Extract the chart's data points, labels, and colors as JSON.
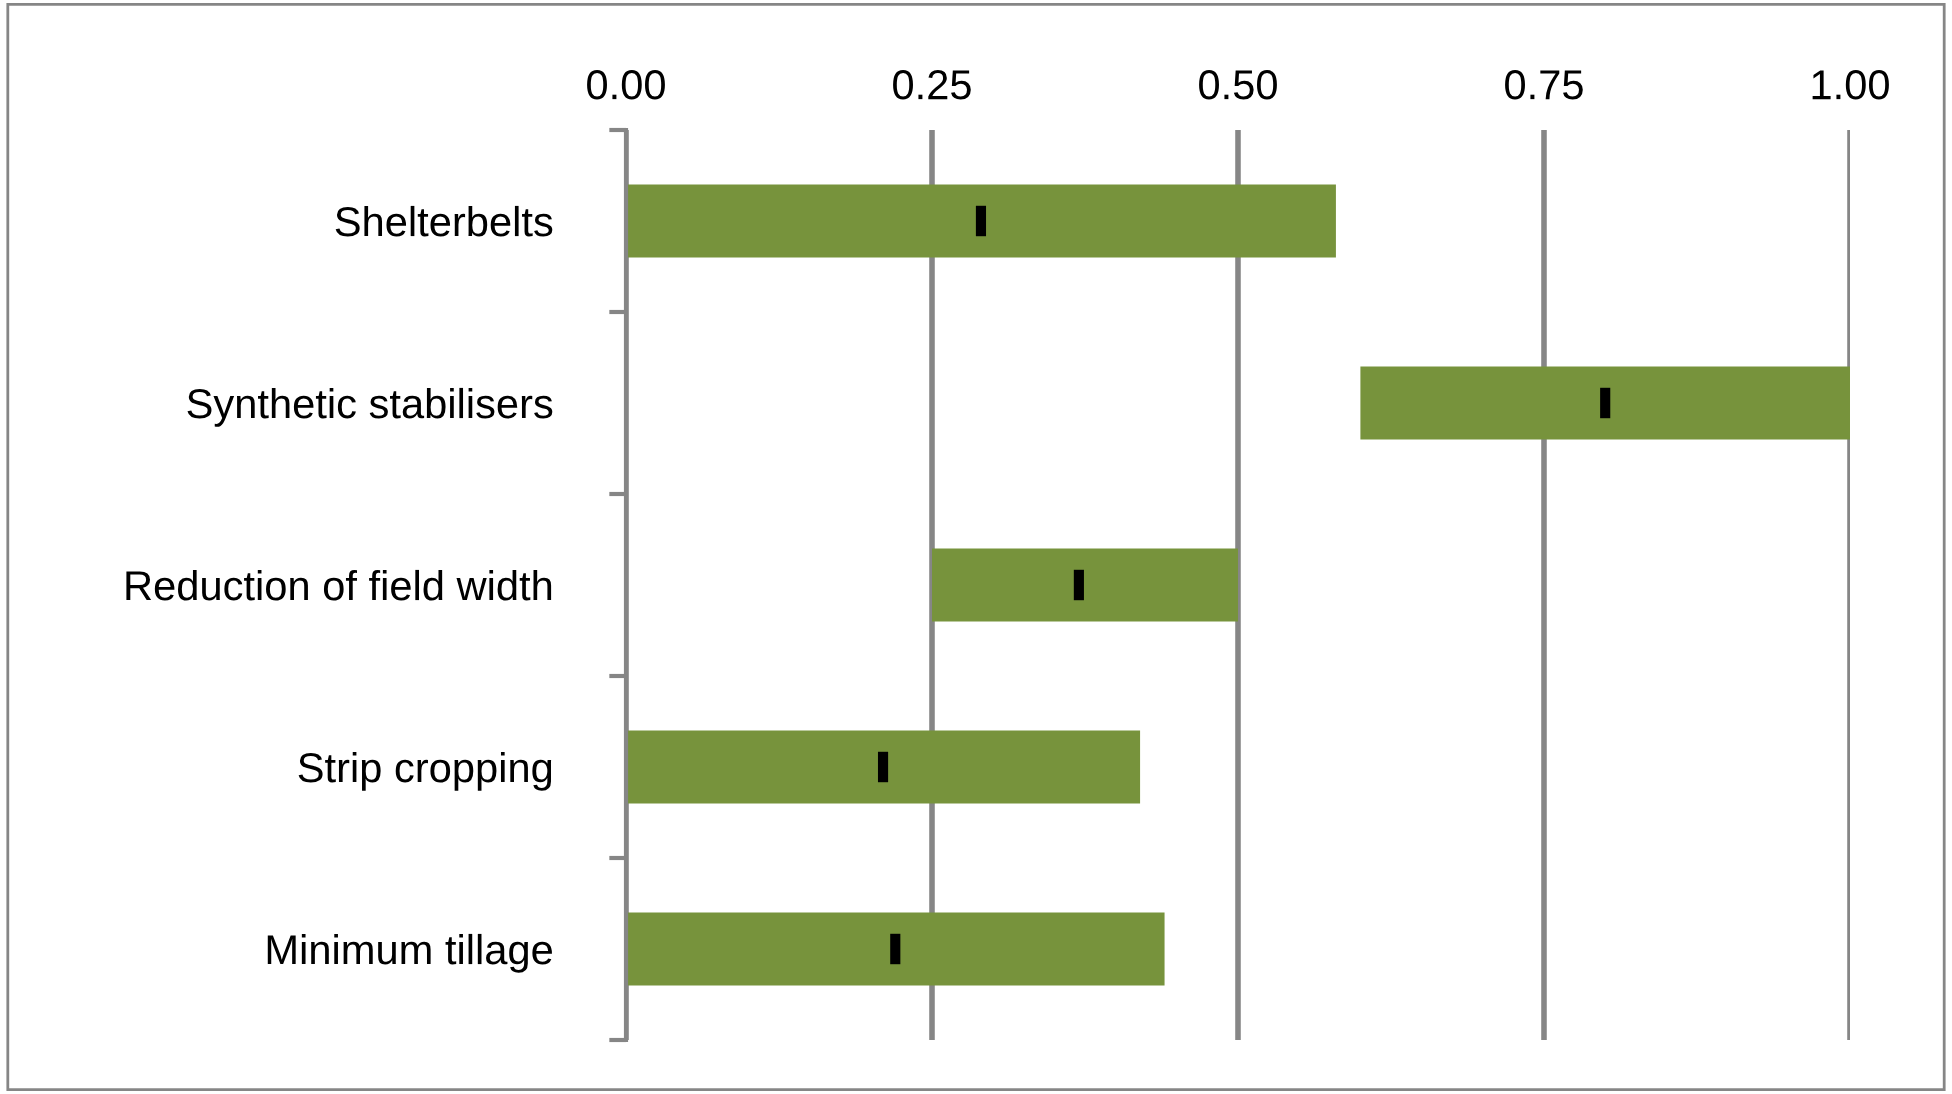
{
  "chart_data": {
    "type": "bar",
    "orientation": "horizontal",
    "categories": [
      "Shelterbelts",
      "Synthetic stabilisers",
      "Reduction of field width",
      "Strip cropping",
      "Minimum tillage"
    ],
    "series": [
      {
        "color": "#77933c",
        "base": [
          0,
          0.6,
          0.25,
          0,
          0
        ],
        "values": [
          0.58,
          0.4,
          0.25,
          0.42,
          0.44
        ]
      },
      {
        "type": "scatter",
        "color": "#000000",
        "values": [
          0.29,
          0.8,
          0.37,
          0.21,
          0.22
        ]
      }
    ],
    "xlim": [
      0,
      1
    ],
    "xticks": [
      {
        "value": 0,
        "label": "0.00"
      },
      {
        "value": 0.25,
        "label": "0.25"
      },
      {
        "value": 0.5,
        "label": "0.50"
      },
      {
        "value": 0.75,
        "label": "0.75"
      },
      {
        "value": 1,
        "label": "1.00"
      }
    ],
    "grid": "x"
  }
}
